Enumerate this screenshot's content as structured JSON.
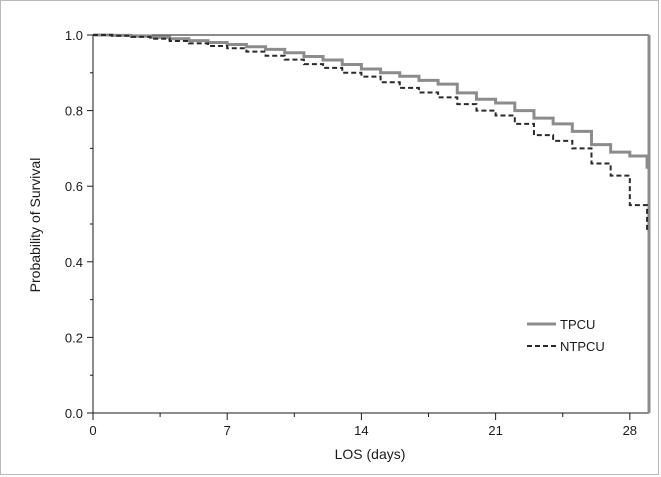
{
  "chart_data": {
    "type": "line",
    "xlabel": "LOS (days)",
    "ylabel": "Probability of Survival",
    "xlim": [
      0,
      29
    ],
    "ylim": [
      0,
      1.0
    ],
    "x_ticks": [
      0,
      7,
      14,
      21,
      28
    ],
    "x_tick_labels": [
      "0",
      "7",
      "14",
      "21",
      "28"
    ],
    "y_ticks": [
      0,
      0.2,
      0.4,
      0.6,
      0.8,
      1.0
    ],
    "y_tick_labels": [
      "0.0",
      "0.2",
      "0.4",
      "0.6",
      "0.8",
      "1.0"
    ],
    "legend_position": "bottom-right",
    "grid": false,
    "step": true,
    "series": [
      {
        "name": "TPCU",
        "style": "solid",
        "color": "#8c8c8c",
        "x": [
          0,
          1,
          2,
          3,
          4,
          5,
          6,
          7,
          8,
          9,
          10,
          11,
          12,
          13,
          14,
          15,
          16,
          17,
          18,
          19,
          20,
          21,
          22,
          23,
          24,
          25,
          26,
          27,
          28,
          28.9,
          29
        ],
        "y": [
          1.0,
          0.999,
          0.997,
          0.994,
          0.99,
          0.985,
          0.98,
          0.975,
          0.969,
          0.962,
          0.953,
          0.943,
          0.934,
          0.922,
          0.91,
          0.9,
          0.891,
          0.88,
          0.87,
          0.847,
          0.83,
          0.82,
          0.8,
          0.78,
          0.765,
          0.745,
          0.71,
          0.69,
          0.68,
          0.65,
          0.0
        ]
      },
      {
        "name": "NTPCU",
        "style": "dashed",
        "color": "#2a2a2a",
        "x": [
          0,
          1,
          2,
          3,
          4,
          5,
          6,
          7,
          8,
          9,
          10,
          11,
          12,
          13,
          14,
          15,
          16,
          17,
          18,
          19,
          20,
          21,
          22,
          23,
          24,
          25,
          26,
          27,
          28,
          28.9
        ],
        "y": [
          1.0,
          0.998,
          0.995,
          0.99,
          0.984,
          0.978,
          0.971,
          0.965,
          0.956,
          0.945,
          0.935,
          0.923,
          0.913,
          0.9,
          0.89,
          0.875,
          0.86,
          0.848,
          0.835,
          0.817,
          0.8,
          0.787,
          0.765,
          0.735,
          0.72,
          0.7,
          0.66,
          0.628,
          0.55,
          0.48
        ]
      }
    ]
  }
}
